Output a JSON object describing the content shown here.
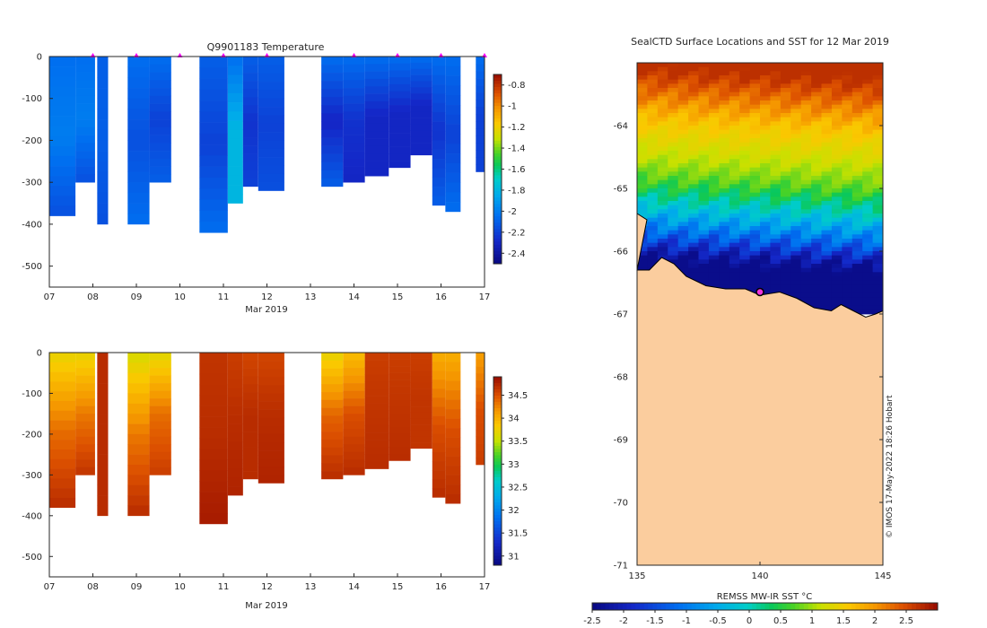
{
  "chart_data": [
    {
      "type": "heatmap",
      "title": "Q9901183  Temperature",
      "xlabel": "Mar 2019",
      "ylabel": "",
      "xlim": [
        7,
        17
      ],
      "ylim": [
        -550,
        0
      ],
      "x_ticks": [
        "07",
        "08",
        "09",
        "10",
        "11",
        "12",
        "13",
        "14",
        "15",
        "16",
        "17"
      ],
      "y_ticks": [
        "0",
        "-100",
        "-200",
        "-300",
        "-400",
        "-500"
      ],
      "colorbar": {
        "min": -2.5,
        "max": -0.7,
        "ticks": [
          "-0.8",
          "-1",
          "-1.2",
          "-1.4",
          "-1.6",
          "-1.8",
          "-2",
          "-2.2",
          "-2.4"
        ]
      },
      "profile_markers_day": [
        8,
        9,
        10,
        11,
        12,
        14,
        15,
        16,
        17
      ],
      "profiles": [
        {
          "t0": 7.0,
          "t1": 7.6,
          "depth": 380,
          "v_top": -2.05,
          "v_mid": -2.0,
          "v_bot": -2.15
        },
        {
          "t0": 7.6,
          "t1": 8.05,
          "depth": 300,
          "v_top": -2.05,
          "v_mid": -2.0,
          "v_bot": -2.15
        },
        {
          "t0": 8.1,
          "t1": 8.35,
          "depth": 400,
          "v_top": -2.1,
          "v_mid": -2.1,
          "v_bot": -2.15
        },
        {
          "t0": 8.8,
          "t1": 9.3,
          "depth": 400,
          "v_top": -2.05,
          "v_mid": -2.15,
          "v_bot": -2.05
        },
        {
          "t0": 9.3,
          "t1": 9.8,
          "depth": 300,
          "v_top": -2.05,
          "v_mid": -2.2,
          "v_bot": -2.1
        },
        {
          "t0": 10.45,
          "t1": 11.1,
          "depth": 420,
          "v_top": -2.1,
          "v_mid": -2.2,
          "v_bot": -2.05
        },
        {
          "t0": 11.1,
          "t1": 11.45,
          "depth": 350,
          "v_top": -2.05,
          "v_mid": -1.8,
          "v_bot": -1.8
        },
        {
          "t0": 11.45,
          "t1": 11.8,
          "depth": 310,
          "v_top": -2.1,
          "v_mid": -2.25,
          "v_bot": -2.2
        },
        {
          "t0": 11.8,
          "t1": 12.4,
          "depth": 320,
          "v_top": -2.1,
          "v_mid": -2.2,
          "v_bot": -2.15
        },
        {
          "t0": 13.25,
          "t1": 13.75,
          "depth": 310,
          "v_top": -2.05,
          "v_mid": -2.3,
          "v_bot": -2.1
        },
        {
          "t0": 13.75,
          "t1": 14.25,
          "depth": 300,
          "v_top": -2.05,
          "v_mid": -2.25,
          "v_bot": -2.3
        },
        {
          "t0": 14.25,
          "t1": 14.8,
          "depth": 285,
          "v_top": -2.05,
          "v_mid": -2.3,
          "v_bot": -2.3
        },
        {
          "t0": 14.8,
          "t1": 15.3,
          "depth": 265,
          "v_top": -2.05,
          "v_mid": -2.3,
          "v_bot": -2.3
        },
        {
          "t0": 15.3,
          "t1": 15.8,
          "depth": 235,
          "v_top": -2.05,
          "v_mid": -2.3,
          "v_bot": -2.3
        },
        {
          "t0": 15.8,
          "t1": 16.1,
          "depth": 355,
          "v_top": -2.05,
          "v_mid": -2.25,
          "v_bot": -2.1
        },
        {
          "t0": 16.1,
          "t1": 16.45,
          "depth": 370,
          "v_top": -2.05,
          "v_mid": -2.2,
          "v_bot": -2.05
        },
        {
          "t0": 16.8,
          "t1": 17.0,
          "depth": 275,
          "v_top": -2.05,
          "v_mid": -2.2,
          "v_bot": -2.2
        }
      ]
    },
    {
      "type": "heatmap",
      "title": "",
      "xlabel": "Mar 2019",
      "ylabel": "",
      "xlim": [
        7,
        17
      ],
      "ylim": [
        -550,
        0
      ],
      "x_ticks": [
        "07",
        "08",
        "09",
        "10",
        "11",
        "12",
        "13",
        "14",
        "15",
        "16",
        "17"
      ],
      "y_ticks": [
        "0",
        "-100",
        "-200",
        "-300",
        "-400",
        "-500"
      ],
      "colorbar": {
        "min": 30.8,
        "max": 34.9,
        "ticks": [
          "34.5",
          "34",
          "33.5",
          "33",
          "32.5",
          "32",
          "31.5",
          "31"
        ]
      },
      "profiles": [
        {
          "t0": 7.0,
          "t1": 7.6,
          "depth": 380,
          "v_top": 33.7,
          "v_mid": 34.35,
          "v_bot": 34.7
        },
        {
          "t0": 7.6,
          "t1": 8.05,
          "depth": 300,
          "v_top": 33.7,
          "v_mid": 34.3,
          "v_bot": 34.65
        },
        {
          "t0": 8.1,
          "t1": 8.35,
          "depth": 400,
          "v_top": 34.7,
          "v_mid": 34.7,
          "v_bot": 34.7
        },
        {
          "t0": 8.8,
          "t1": 9.3,
          "depth": 400,
          "v_top": 33.6,
          "v_mid": 34.3,
          "v_bot": 34.7
        },
        {
          "t0": 9.3,
          "t1": 9.8,
          "depth": 300,
          "v_top": 33.65,
          "v_mid": 34.35,
          "v_bot": 34.6
        },
        {
          "t0": 10.45,
          "t1": 11.1,
          "depth": 420,
          "v_top": 34.65,
          "v_mid": 34.7,
          "v_bot": 34.8
        },
        {
          "t0": 11.1,
          "t1": 11.45,
          "depth": 350,
          "v_top": 34.6,
          "v_mid": 34.7,
          "v_bot": 34.75
        },
        {
          "t0": 11.45,
          "t1": 11.8,
          "depth": 310,
          "v_top": 34.55,
          "v_mid": 34.7,
          "v_bot": 34.7
        },
        {
          "t0": 11.8,
          "t1": 12.4,
          "depth": 320,
          "v_top": 34.55,
          "v_mid": 34.7,
          "v_bot": 34.75
        },
        {
          "t0": 13.25,
          "t1": 13.75,
          "depth": 310,
          "v_top": 33.7,
          "v_mid": 34.4,
          "v_bot": 34.7
        },
        {
          "t0": 13.75,
          "t1": 14.25,
          "depth": 300,
          "v_top": 33.9,
          "v_mid": 34.5,
          "v_bot": 34.7
        },
        {
          "t0": 14.25,
          "t1": 14.8,
          "depth": 285,
          "v_top": 34.6,
          "v_mid": 34.65,
          "v_bot": 34.7
        },
        {
          "t0": 14.8,
          "t1": 15.3,
          "depth": 265,
          "v_top": 34.6,
          "v_mid": 34.65,
          "v_bot": 34.7
        },
        {
          "t0": 15.3,
          "t1": 15.8,
          "depth": 235,
          "v_top": 34.6,
          "v_mid": 34.65,
          "v_bot": 34.65
        },
        {
          "t0": 15.8,
          "t1": 16.1,
          "depth": 355,
          "v_top": 34.0,
          "v_mid": 34.5,
          "v_bot": 34.7
        },
        {
          "t0": 16.1,
          "t1": 16.45,
          "depth": 370,
          "v_top": 34.0,
          "v_mid": 34.5,
          "v_bot": 34.7
        },
        {
          "t0": 16.8,
          "t1": 17.0,
          "depth": 275,
          "v_top": 34.1,
          "v_mid": 34.5,
          "v_bot": 34.6
        }
      ]
    },
    {
      "type": "heatmap",
      "title": "SealCTD Surface Locations and SST for 12 Mar 2019",
      "xlabel": "",
      "ylabel": "",
      "xlim": [
        135,
        145
      ],
      "ylim": [
        -71,
        -63
      ],
      "x_ticks": [
        "135",
        "140",
        "145"
      ],
      "y_ticks": [
        "-64",
        "-65",
        "-66",
        "-67",
        "-68",
        "-69",
        "-70",
        "-71"
      ],
      "colorbar": {
        "label": "REMSS MW-IR SST °C",
        "min": -2.5,
        "max": 3.0,
        "ticks": [
          "-2.5",
          "-2",
          "-1.5",
          "-1",
          "-0.5",
          "0",
          "0.5",
          "1",
          "1.5",
          "2",
          "2.5"
        ]
      },
      "seal_location": {
        "lon": 140.0,
        "lat": -66.65
      },
      "sst_bands": [
        {
          "lat": -63.2,
          "sst": 2.7
        },
        {
          "lat": -63.6,
          "sst": 2.2
        },
        {
          "lat": -64.0,
          "sst": 1.6
        },
        {
          "lat": -64.5,
          "sst": 1.2
        },
        {
          "lat": -64.9,
          "sst": 0.8
        },
        {
          "lat": -65.2,
          "sst": 0.2
        },
        {
          "lat": -65.5,
          "sst": -0.4
        },
        {
          "lat": -65.8,
          "sst": -1.2
        },
        {
          "lat": -66.2,
          "sst": -2.4
        }
      ],
      "credit": "© IMOS 17-May-2022 18:26 Hobart"
    }
  ]
}
